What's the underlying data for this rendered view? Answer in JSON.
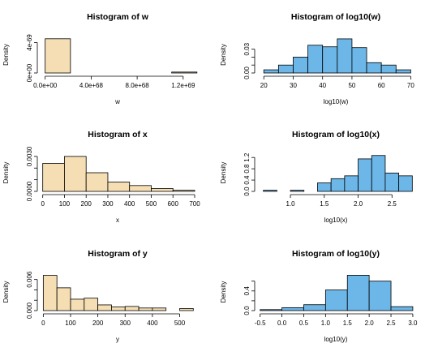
{
  "colors": {
    "wheat": "#f5deb3",
    "skyblue": "#6cb6e8"
  },
  "chart_data": [
    {
      "type": "bar",
      "title": "Histogram of w",
      "xlabel": "w",
      "ylabel": "Density",
      "color": "wheat",
      "breaks": [
        0,
        2.2e+68,
        4.4e+68,
        6.6e+68,
        8.8e+68,
        1.1e+69,
        1.32e+69
      ],
      "values": [
        4.5e-69,
        0,
        0,
        0,
        0,
        1.2e-70
      ],
      "xlim": [
        -4e+67,
        1.3e+69
      ],
      "ylim": [
        0,
        4.8e-69
      ],
      "xticks": [
        0,
        4e+68,
        8e+68,
        1.2e+69
      ],
      "xtick_labels": [
        "0.0e+00",
        "4.0e+68",
        "8.0e+68",
        "1.2e+69"
      ],
      "yticks": [
        0,
        4e-69
      ],
      "ytick_labels": [
        "0e+00",
        "4e-69"
      ]
    },
    {
      "type": "bar",
      "title": "Histogram of log10(w)",
      "xlabel": "log10(w)",
      "ylabel": "Density",
      "color": "skyblue",
      "breaks": [
        20,
        25,
        30,
        35,
        40,
        45,
        50,
        55,
        60,
        65,
        70
      ],
      "values": [
        0.004,
        0.01,
        0.02,
        0.035,
        0.033,
        0.043,
        0.032,
        0.013,
        0.01,
        0.004
      ],
      "xlim": [
        18,
        71
      ],
      "ylim": [
        0,
        0.046
      ],
      "xticks": [
        20,
        30,
        40,
        50,
        60,
        70
      ],
      "xtick_labels": [
        "20",
        "30",
        "40",
        "50",
        "60",
        "70"
      ],
      "yticks": [
        0,
        0.01,
        0.02,
        0.03
      ],
      "ytick_labels": [
        "0.00",
        "",
        "",
        "0.03"
      ]
    },
    {
      "type": "bar",
      "title": "Histogram of x",
      "xlabel": "x",
      "ylabel": "Density",
      "color": "wheat",
      "breaks": [
        0,
        100,
        200,
        300,
        400,
        500,
        600,
        700
      ],
      "values": [
        0.0024,
        0.003,
        0.0016,
        0.0008,
        0.0005,
        0.00025,
        0.0001
      ],
      "xlim": [
        -10,
        700
      ],
      "ylim": [
        0,
        0.0032
      ],
      "xticks": [
        0,
        100,
        200,
        300,
        400,
        500,
        600,
        700
      ],
      "xtick_labels": [
        "0",
        "100",
        "200",
        "300",
        "400",
        "500",
        "600",
        "700"
      ],
      "yticks": [
        0,
        0.001,
        0.002,
        0.003
      ],
      "ytick_labels": [
        "0.0000",
        "",
        "",
        "0.0030"
      ]
    },
    {
      "type": "bar",
      "title": "Histogram of log10(x)",
      "xlabel": "log10(x)",
      "ylabel": "Density",
      "color": "skyblue",
      "breaks": [
        0.6,
        0.8,
        1.0,
        1.2,
        1.4,
        1.6,
        1.8,
        2.0,
        2.2,
        2.4,
        2.6,
        2.8
      ],
      "values": [
        0.04,
        0,
        0.04,
        0,
        0.3,
        0.45,
        0.55,
        1.15,
        1.27,
        0.65,
        0.55
      ],
      "xlim": [
        0.52,
        2.82
      ],
      "ylim": [
        0,
        1.32
      ],
      "xticks": [
        1.0,
        1.5,
        2.0,
        2.5
      ],
      "xtick_labels": [
        "1.0",
        "1.5",
        "2.0",
        "2.5"
      ],
      "yticks": [
        0,
        0.4,
        0.8,
        1.2
      ],
      "ytick_labels": [
        "0.0",
        "0.4",
        "0.8",
        "1.2"
      ]
    },
    {
      "type": "bar",
      "title": "Histogram of y",
      "xlabel": "y",
      "ylabel": "Density",
      "color": "wheat",
      "breaks": [
        0,
        50,
        100,
        150,
        200,
        250,
        300,
        350,
        400,
        450,
        500,
        550
      ],
      "values": [
        0.0068,
        0.0044,
        0.0022,
        0.0024,
        0.0011,
        0.0007,
        0.0008,
        0.0005,
        0.0005,
        0.0,
        0.0004
      ],
      "xlim": [
        -10,
        555
      ],
      "ylim": [
        0,
        0.0072
      ],
      "xticks": [
        0,
        100,
        200,
        300,
        400,
        500
      ],
      "xtick_labels": [
        "0",
        "100",
        "200",
        "300",
        "400",
        "500"
      ],
      "yticks": [
        0,
        0.002,
        0.004,
        0.006
      ],
      "ytick_labels": [
        "0.000",
        "",
        "",
        "0.006"
      ]
    },
    {
      "type": "bar",
      "title": "Histogram of log10(y)",
      "xlabel": "log10(y)",
      "ylabel": "Density",
      "color": "skyblue",
      "breaks": [
        -0.5,
        0.0,
        0.5,
        1.0,
        1.5,
        2.0,
        2.5,
        3.0
      ],
      "values": [
        0.02,
        0.06,
        0.12,
        0.42,
        0.72,
        0.6,
        0.08
      ],
      "xlim": [
        -0.55,
        3.02
      ],
      "ylim": [
        0,
        0.76
      ],
      "xticks": [
        -0.5,
        0.0,
        0.5,
        1.0,
        1.5,
        2.0,
        2.5,
        3.0
      ],
      "xtick_labels": [
        "-0.5",
        "0.0",
        "0.5",
        "1.0",
        "1.5",
        "2.0",
        "2.5",
        "3.0"
      ],
      "yticks": [
        0,
        0.2,
        0.4,
        0.6
      ],
      "ytick_labels": [
        "0.0",
        "",
        "0.4",
        ""
      ]
    }
  ]
}
